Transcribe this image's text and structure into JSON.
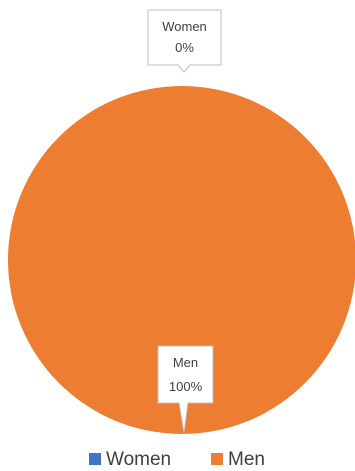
{
  "chart_data": {
    "type": "pie",
    "title": "",
    "categories": [
      "Women",
      "Men"
    ],
    "values": [
      0,
      100
    ],
    "data_labels": [
      {
        "category": "Women",
        "percent": "0%"
      },
      {
        "category": "Men",
        "percent": "100%"
      }
    ],
    "colors": {
      "Women": "#4472C4",
      "Men": "#ED7D31"
    },
    "legend": {
      "placement": "bottom",
      "entries": [
        "Women",
        "Men"
      ]
    }
  }
}
